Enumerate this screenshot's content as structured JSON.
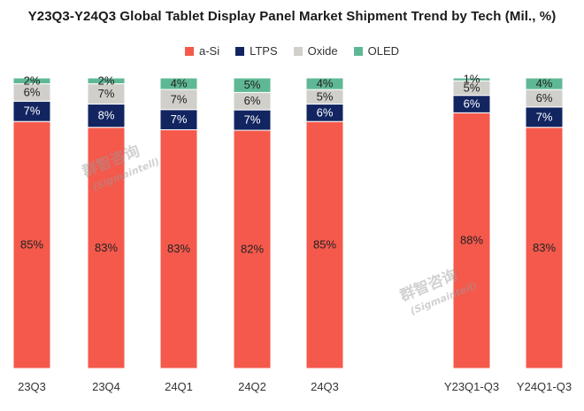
{
  "chart_data": {
    "type": "bar",
    "stacked": true,
    "percent_stacked": true,
    "title": "Y23Q3-Y24Q3 Global Tablet Display Panel Market Shipment Trend by Tech (Mil., %)",
    "categories": [
      "23Q3",
      "23Q4",
      "24Q1",
      "24Q2",
      "24Q3",
      "Y23Q1-Q3",
      "Y24Q1-Q3"
    ],
    "series": [
      {
        "name": "a-Si",
        "color": "#f4594c",
        "values": [
          85,
          83,
          83,
          82,
          85,
          88,
          83
        ]
      },
      {
        "name": "LTPS",
        "color": "#122560",
        "values": [
          7,
          8,
          7,
          7,
          6,
          6,
          7
        ]
      },
      {
        "name": "Oxide",
        "color": "#d0cfca",
        "values": [
          6,
          7,
          7,
          6,
          5,
          5,
          6
        ]
      },
      {
        "name": "OLED",
        "color": "#5fb895",
        "values": [
          2,
          2,
          4,
          5,
          4,
          1,
          4
        ]
      }
    ],
    "data_labels": [
      [
        "85%",
        "83%",
        "83%",
        "82%",
        "85%",
        "88%",
        "83%"
      ],
      [
        "7%",
        "8%",
        "7%",
        "7%",
        "6%",
        "6%",
        "7%"
      ],
      [
        "6%",
        "7%",
        "7%",
        "6%",
        "5%",
        "5%",
        "6%"
      ],
      [
        "2%",
        "2%",
        "4%",
        "5%",
        "4%",
        "1%",
        "4%"
      ]
    ],
    "legend_position": "top-center",
    "grid": false
  },
  "watermark": {
    "text": "群智咨询",
    "subtext": "(Sigmaintell)"
  }
}
